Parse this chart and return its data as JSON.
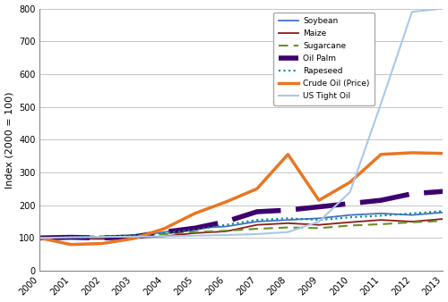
{
  "years": [
    2000,
    2001,
    2002,
    2003,
    2004,
    2005,
    2006,
    2007,
    2008,
    2009,
    2010,
    2011,
    2012,
    2013
  ],
  "soybean": [
    100,
    103,
    100,
    105,
    118,
    130,
    135,
    150,
    155,
    160,
    170,
    175,
    170,
    178
  ],
  "maize": [
    100,
    98,
    97,
    100,
    105,
    115,
    120,
    140,
    145,
    140,
    148,
    155,
    150,
    158
  ],
  "sugarcane": [
    100,
    105,
    105,
    108,
    112,
    118,
    122,
    128,
    132,
    130,
    138,
    142,
    148,
    152
  ],
  "oil_palm": [
    100,
    102,
    100,
    103,
    118,
    130,
    150,
    180,
    185,
    195,
    205,
    215,
    235,
    242
  ],
  "rapeseed": [
    100,
    102,
    104,
    108,
    115,
    125,
    140,
    155,
    160,
    155,
    163,
    168,
    175,
    182
  ],
  "crude_oil": [
    100,
    80,
    83,
    98,
    128,
    175,
    210,
    250,
    355,
    215,
    270,
    355,
    360,
    358
  ],
  "us_tight_oil": [
    100,
    102,
    103,
    104,
    105,
    107,
    109,
    112,
    118,
    150,
    240,
    510,
    790,
    800
  ],
  "soybean_color": "#4472C4",
  "maize_color": "#8B1A1A",
  "sugarcane_color": "#6B8E23",
  "oil_palm_color": "#3D006E",
  "rapeseed_color": "#008B8B",
  "crude_oil_color": "#E87722",
  "us_tight_oil_color": "#A8C8E8",
  "ylabel": "Index (2000 = 100)",
  "ylim": [
    0,
    800
  ],
  "yticks": [
    0,
    100,
    200,
    300,
    400,
    500,
    600,
    700,
    800
  ],
  "grid_color": "#BBBBBB",
  "legend_labels": [
    "Soybean",
    "Maize",
    "Sugarcane",
    "Oil Palm",
    "Rapeseed",
    "Crude Oil (Price)",
    "US Tight Oil"
  ]
}
